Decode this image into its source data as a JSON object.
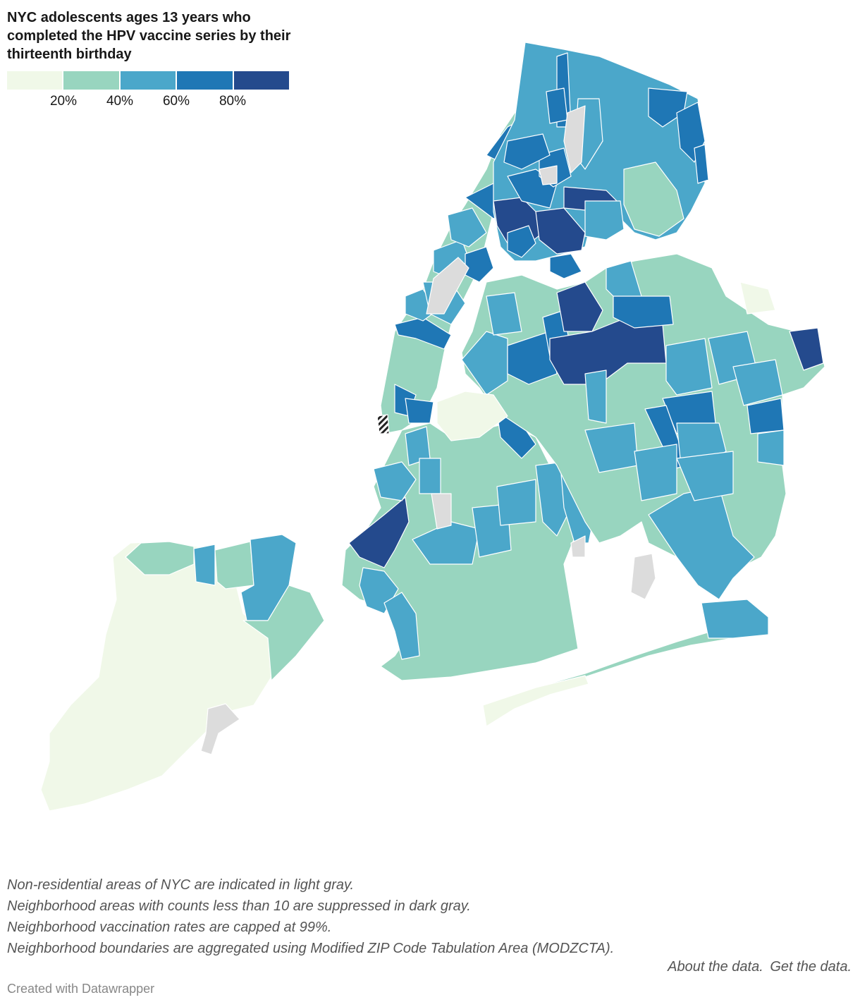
{
  "title": "NYC adolescents ages 13 years who completed the HPV vaccine series by their thirteenth birthday",
  "legend": {
    "bins": [
      {
        "color": "#f0f8e8"
      },
      {
        "color": "#98d5bf"
      },
      {
        "color": "#4ba7ca"
      },
      {
        "color": "#1f77b5"
      },
      {
        "color": "#244a8d"
      }
    ],
    "ticks": [
      "20%",
      "40%",
      "60%",
      "80%"
    ]
  },
  "colors": {
    "non_residential": "#dcdcdc",
    "suppressed_pattern": "#222222",
    "boundary": "#ffffff"
  },
  "notes": [
    "Non-residential areas of NYC are indicated in light gray.",
    "Neighborhood areas with counts less than 10 are suppressed in dark gray.",
    "Neighborhood vaccination rates are capped at 99%.",
    "Neighborhood boundaries are aggregated using Modified ZIP Code Tabulation Area (MODZCTA)."
  ],
  "links": {
    "about": "About the data.",
    "get": "Get the data."
  },
  "credit": "Created with Datawrapper"
}
